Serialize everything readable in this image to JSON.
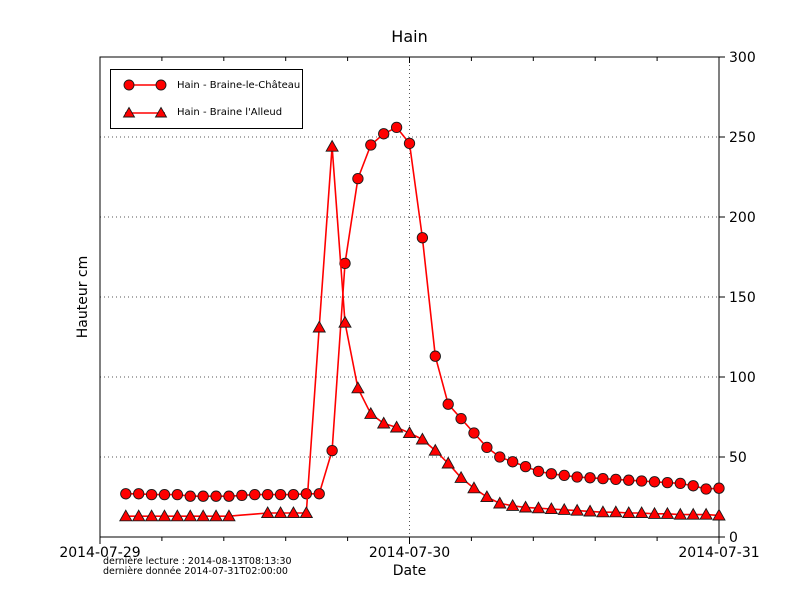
{
  "title": "Hain",
  "axes": {
    "x_label": "Date",
    "y_label": "Hauteur cm"
  },
  "footnotes": [
    "dernière lecture : 2014-08-13T08:13:30",
    "dernière donnée  2014-07-31T02:00:00"
  ],
  "chart_data": {
    "type": "line",
    "title": "Hain",
    "xlabel": "Date",
    "ylabel": "Hauteur cm",
    "x_unit": "hours since 2014-07-29T00:00",
    "xlim": [
      0,
      48
    ],
    "ylim": [
      0,
      300
    ],
    "grid": "dotted black, horizontal at y ticks, vertical at x major 2014-07-30",
    "legend_position": "upper left",
    "x_major_ticks": [
      0,
      24,
      48
    ],
    "x_major_tick_labels": [
      "2014-07-29",
      "2014-07-30",
      "2014-07-31"
    ],
    "x_minor_ticks": [
      4.8,
      9.6,
      14.4,
      19.2,
      28.8,
      33.6,
      38.4,
      43.2
    ],
    "y_ticks": [
      0,
      50,
      100,
      150,
      200,
      250,
      300
    ],
    "y_tick_labels": [
      "0",
      "50",
      "100",
      "150",
      "200",
      "250",
      "300"
    ],
    "line_color": "#ff0000",
    "marker_edge_color": "#1a1a1a",
    "series": [
      {
        "name": "Hain - Braine-le-Château",
        "marker": "circle",
        "color": "#ff0000",
        "points": [
          [
            2,
            27
          ],
          [
            3,
            27
          ],
          [
            4,
            26.5
          ],
          [
            5,
            26.5
          ],
          [
            6,
            26.5
          ],
          [
            7,
            25.5
          ],
          [
            8,
            25.5
          ],
          [
            9,
            25.5
          ],
          [
            10,
            25.5
          ],
          [
            11,
            26
          ],
          [
            12,
            26.5
          ],
          [
            13,
            26.5
          ],
          [
            14,
            26.5
          ],
          [
            15,
            26.5
          ],
          [
            16,
            27
          ],
          [
            17,
            27
          ],
          [
            18,
            54
          ],
          [
            19,
            171
          ],
          [
            20,
            224
          ],
          [
            21,
            245
          ],
          [
            22,
            252
          ],
          [
            23,
            256
          ],
          [
            24,
            246
          ],
          [
            25,
            187
          ],
          [
            26,
            113
          ],
          [
            27,
            83
          ],
          [
            28,
            74
          ],
          [
            29,
            65
          ],
          [
            30,
            56
          ],
          [
            31,
            50
          ],
          [
            32,
            47
          ],
          [
            33,
            44
          ],
          [
            34,
            41
          ],
          [
            35,
            39.5
          ],
          [
            36,
            38.5
          ],
          [
            37,
            37.5
          ],
          [
            38,
            37
          ],
          [
            39,
            36.5
          ],
          [
            40,
            36
          ],
          [
            41,
            35.5
          ],
          [
            42,
            35
          ],
          [
            43,
            34.5
          ],
          [
            44,
            34
          ],
          [
            45,
            33.5
          ],
          [
            46,
            32
          ],
          [
            47,
            30
          ],
          [
            48,
            30.5
          ]
        ],
        "no_marker_hours": []
      },
      {
        "name": "Hain - Braine l'Alleud",
        "marker": "triangle",
        "color": "#ff0000",
        "points": [
          [
            2,
            13
          ],
          [
            3,
            13
          ],
          [
            4,
            13
          ],
          [
            5,
            13
          ],
          [
            6,
            13
          ],
          [
            7,
            13
          ],
          [
            8,
            13
          ],
          [
            9,
            13
          ],
          [
            10,
            13
          ],
          [
            11,
            13.7
          ],
          [
            12,
            14.3
          ],
          [
            13,
            15
          ],
          [
            14,
            15
          ],
          [
            15,
            15
          ],
          [
            16,
            15
          ],
          [
            17,
            131
          ],
          [
            18,
            244
          ],
          [
            19,
            134
          ],
          [
            20,
            93
          ],
          [
            21,
            77
          ],
          [
            22,
            71
          ],
          [
            23,
            68.5
          ],
          [
            24,
            65
          ],
          [
            25,
            61
          ],
          [
            26,
            54
          ],
          [
            27,
            46
          ],
          [
            28,
            37
          ],
          [
            29,
            30.5
          ],
          [
            30,
            25
          ],
          [
            31,
            21
          ],
          [
            32,
            19.5
          ],
          [
            33,
            18.5
          ],
          [
            34,
            18
          ],
          [
            35,
            17.5
          ],
          [
            36,
            17
          ],
          [
            37,
            16.5
          ],
          [
            38,
            16
          ],
          [
            39,
            15.5
          ],
          [
            40,
            15.5
          ],
          [
            41,
            15
          ],
          [
            42,
            15
          ],
          [
            43,
            14.5
          ],
          [
            44,
            14.5
          ],
          [
            45,
            14
          ],
          [
            46,
            14
          ],
          [
            47,
            14
          ],
          [
            48,
            13.5
          ]
        ],
        "no_marker_hours": [
          11,
          12
        ]
      }
    ]
  }
}
